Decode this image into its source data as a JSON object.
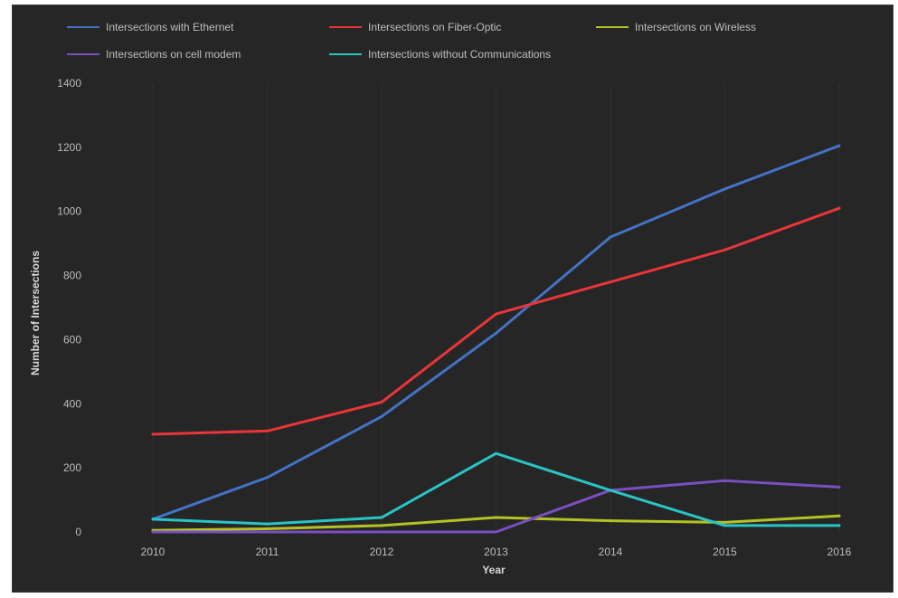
{
  "chart_data": {
    "type": "line",
    "title": "",
    "xlabel": "Year",
    "ylabel": "Number of Intersections",
    "ylim": [
      0,
      1400
    ],
    "yticks": [
      "0",
      "200",
      "400",
      "600",
      "800",
      "1000",
      "1200",
      "1400"
    ],
    "x": [
      "2010",
      "2011",
      "2012",
      "2013",
      "2014",
      "2015",
      "2016"
    ],
    "grid": "vertical gridlines at years",
    "legend_position": "top",
    "series": [
      {
        "name": "Intersections with Ethernet",
        "color": "#4472c4",
        "values": [
          40,
          170,
          360,
          620,
          920,
          1070,
          1205
        ]
      },
      {
        "name": "Intersections on Fiber-Optic",
        "color": "#e8353a",
        "values": [
          305,
          315,
          405,
          680,
          780,
          880,
          1010
        ]
      },
      {
        "name": "Intersections on Wireless",
        "color": "#b5c226",
        "values": [
          5,
          10,
          20,
          45,
          35,
          30,
          50
        ]
      },
      {
        "name": "Intersections on cell modem",
        "color": "#7a4fc0",
        "values": [
          0,
          0,
          0,
          0,
          130,
          160,
          140
        ]
      },
      {
        "name": "Intersections without Communications",
        "color": "#29c4c4",
        "values": [
          40,
          25,
          45,
          245,
          130,
          20,
          20
        ]
      }
    ]
  }
}
